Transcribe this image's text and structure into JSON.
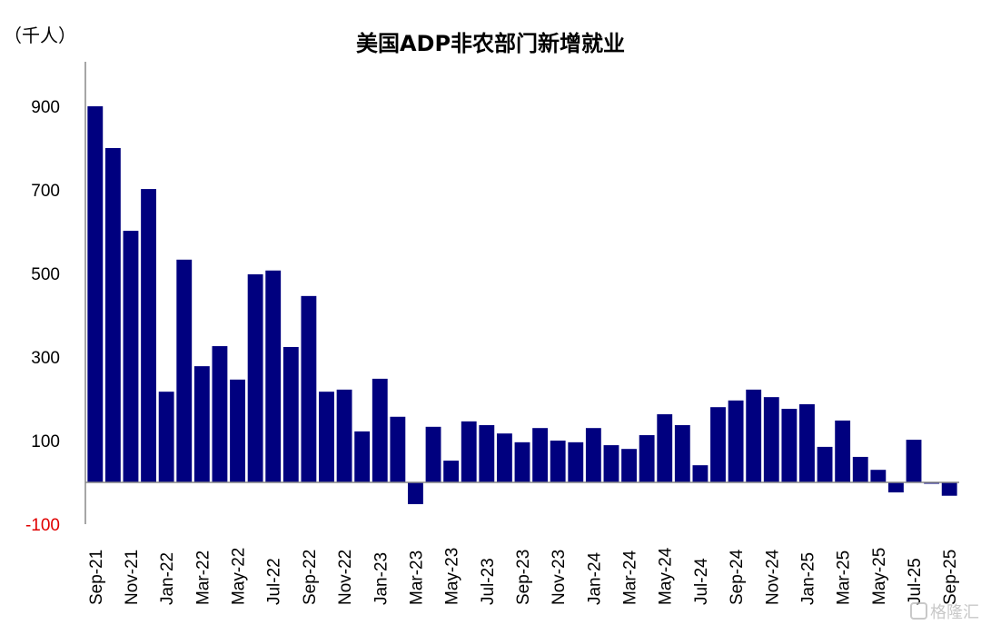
{
  "chart_data": {
    "type": "bar",
    "title": "美国ADP非农部门新增就业",
    "ylabel": "（千人）",
    "xlabel": "",
    "ylim": [
      -100,
      1000
    ],
    "yticks": [
      900,
      700,
      500,
      300,
      100,
      -100
    ],
    "grid": false,
    "bar_color": "#00007f",
    "negative_tick_color": "#e00000",
    "categories": [
      "Sep-21",
      "Oct-21",
      "Nov-21",
      "Dec-21",
      "Jan-22",
      "Feb-22",
      "Mar-22",
      "Apr-22",
      "May-22",
      "Jun-22",
      "Jul-22",
      "Aug-22",
      "Sep-22",
      "Oct-22",
      "Nov-22",
      "Dec-22",
      "Jan-23",
      "Feb-23",
      "Mar-23",
      "Apr-23",
      "May-23",
      "Jun-23",
      "Jul-23",
      "Aug-23",
      "Sep-23",
      "Oct-23",
      "Nov-23",
      "Dec-23",
      "Jan-24",
      "Feb-24",
      "Mar-24",
      "Apr-24",
      "May-24",
      "Jun-24",
      "Jul-24",
      "Aug-24",
      "Sep-24",
      "Oct-24",
      "Nov-24",
      "Dec-24",
      "Jan-25",
      "Feb-25",
      "Mar-25",
      "Apr-25",
      "May-25",
      "Jun-25",
      "Jul-25",
      "Aug-25",
      "Sep-25"
    ],
    "values": [
      900,
      800,
      602,
      702,
      217,
      533,
      278,
      326,
      246,
      498,
      507,
      324,
      446,
      217,
      222,
      122,
      248,
      157,
      -52,
      133,
      52,
      146,
      137,
      117,
      96,
      130,
      100,
      96,
      130,
      89,
      80,
      113,
      163,
      137,
      41,
      180,
      196,
      222,
      204,
      176,
      187,
      85,
      148,
      61,
      30,
      -24,
      102,
      -3,
      -32
    ]
  },
  "watermark": "格隆汇"
}
